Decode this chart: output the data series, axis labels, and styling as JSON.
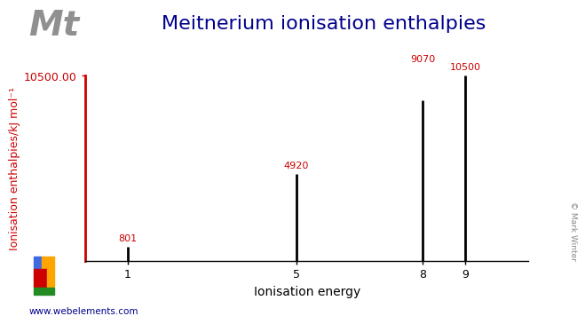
{
  "title": "Meitnerium ionisation enthalpies",
  "element_symbol": "Mt",
  "xlabel": "Ionisation energy",
  "ylabel": "Ionisation enthalpies/kJ mol⁻¹",
  "ylim": [
    0,
    10500
  ],
  "ytick_label": "10500.00",
  "bar_positions": [
    1,
    5,
    8,
    9
  ],
  "bar_values": [
    801,
    4920,
    9070,
    10500
  ],
  "bar_labels": [
    "801",
    "4920",
    "9070",
    "10500"
  ],
  "xtick_positions": [
    1,
    5,
    8,
    9
  ],
  "xtick_labels": [
    "1",
    "5",
    "8",
    "9"
  ],
  "bar_color": "#000000",
  "title_color": "#00008B",
  "ylabel_color": "#CC0000",
  "yaxis_color": "#CC0000",
  "annotation_color": "#CC0000",
  "ytick_color": "#CC0000",
  "symbol_color": "#909090",
  "website": "www.webelements.com",
  "copyright": "© Mark Winter",
  "background_color": "#ffffff",
  "xlim": [
    0,
    10.5
  ],
  "title_fontsize": 16,
  "symbol_fontsize": 28,
  "label_fontsize": 9,
  "annotation_fontsize": 8
}
